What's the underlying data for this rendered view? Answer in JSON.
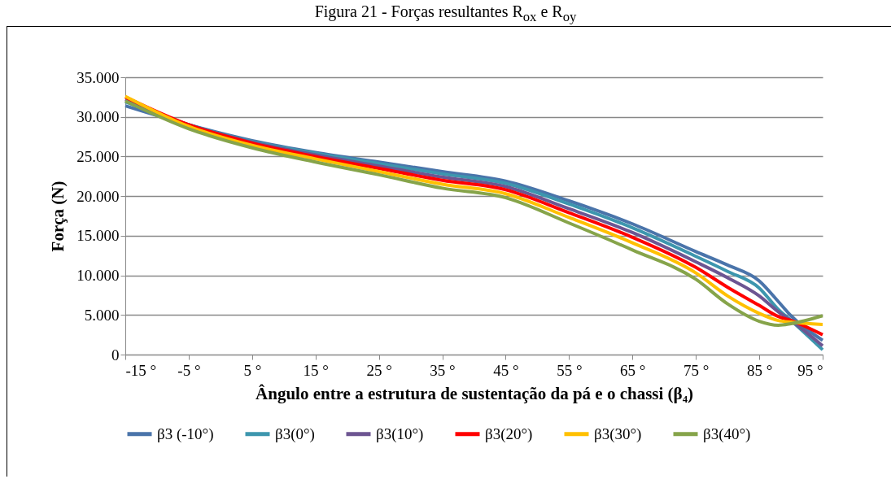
{
  "chart_data": {
    "type": "line",
    "title": "Figura 21 - Forças resultantes R$_{ox}$ e R$_{oy}$",
    "xlabel": "Ângulo entre a estrutura de sustentação da pá e o chassi (β₄)",
    "ylabel": "Força (N)",
    "x": [
      -15,
      -5,
      5,
      15,
      25,
      35,
      45,
      55,
      65,
      75,
      80,
      85,
      88,
      90,
      95
    ],
    "series": [
      {
        "name": "β3 (-10°)",
        "color": "#4a74aa",
        "values": [
          31400,
          29000,
          27000,
          25500,
          24300,
          23100,
          21900,
          19400,
          16500,
          13000,
          11300,
          9300,
          6700,
          4900,
          1800
        ]
      },
      {
        "name": "β3(0°)",
        "color": "#3d96ae",
        "values": [
          31900,
          29000,
          26900,
          25400,
          24100,
          22800,
          21600,
          19000,
          16000,
          12400,
          10500,
          8400,
          5700,
          4300,
          600
        ]
      },
      {
        "name": "β3(10°)",
        "color": "#6d5592",
        "values": [
          32200,
          29000,
          26800,
          25200,
          23800,
          22400,
          21200,
          18400,
          15400,
          11700,
          9700,
          7400,
          5400,
          4300,
          1100
        ]
      },
      {
        "name": "β3(20°)",
        "color": "#ff0000",
        "values": [
          32500,
          29000,
          26700,
          25000,
          23500,
          22000,
          20800,
          17900,
          14800,
          11000,
          8500,
          6200,
          4800,
          4300,
          2500
        ]
      },
      {
        "name": "β3(30°)",
        "color": "#ffc000",
        "values": [
          32600,
          28800,
          26400,
          24700,
          23100,
          21500,
          20300,
          17300,
          14100,
          10300,
          7400,
          5200,
          4300,
          4100,
          3800
        ]
      },
      {
        "name": "β3(40°)",
        "color": "#86a44a",
        "values": [
          32000,
          28500,
          26100,
          24300,
          22700,
          21000,
          19800,
          16600,
          13200,
          9500,
          6400,
          4200,
          3700,
          3900,
          4900
        ]
      }
    ],
    "xlim": [
      -15,
      95
    ],
    "xticks": [
      {
        "value": -15,
        "label": "-15 °"
      },
      {
        "value": -5,
        "label": "-5 °"
      },
      {
        "value": 5,
        "label": "5 °"
      },
      {
        "value": 15,
        "label": "15 °"
      },
      {
        "value": 25,
        "label": "25 °"
      },
      {
        "value": 35,
        "label": "35 °"
      },
      {
        "value": 45,
        "label": "45 °"
      },
      {
        "value": 55,
        "label": "55 °"
      },
      {
        "value": 65,
        "label": "65 °"
      },
      {
        "value": 75,
        "label": "75 °"
      },
      {
        "value": 85,
        "label": "85 °"
      },
      {
        "value": 95,
        "label": "95 °"
      }
    ],
    "ylim": [
      0,
      35000
    ],
    "yticks": [
      0,
      {
        "value": 5000,
        "label": "5.000"
      },
      {
        "value": 10000,
        "label": "10.000"
      },
      {
        "value": 15000,
        "label": "15.000"
      },
      {
        "value": 20000,
        "label": "20.000"
      },
      {
        "value": 25000,
        "label": "25.000"
      },
      {
        "value": 30000,
        "label": "30.000"
      },
      {
        "value": 35000,
        "label": "35.000"
      }
    ],
    "grid": "y",
    "legend": "bottom",
    "marker": "none",
    "line_style": "solid"
  }
}
